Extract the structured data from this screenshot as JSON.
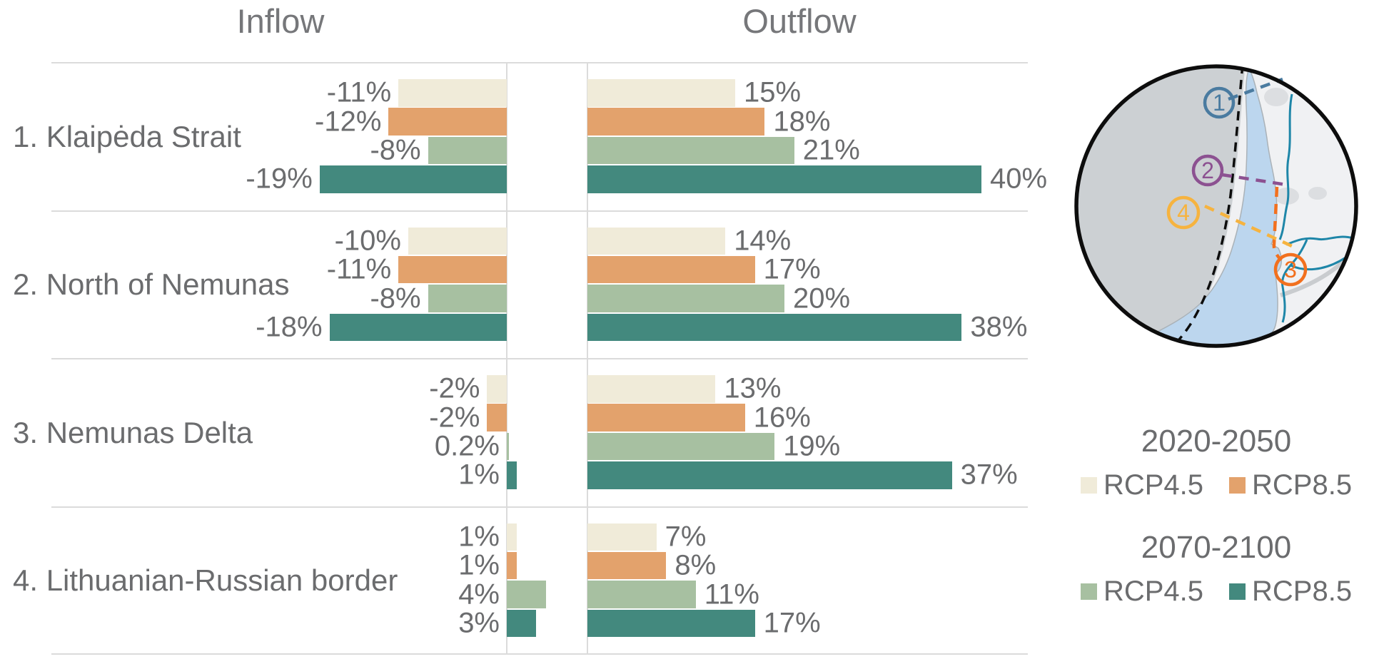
{
  "chart_data": {
    "type": "bar",
    "orientation": "horizontal",
    "panel_titles": [
      "Inflow",
      "Outflow"
    ],
    "categories": [
      "1. Klaipėda Strait",
      "2. North of Nemunas",
      "3. Nemunas Delta",
      "4. Lithuanian-Russian border"
    ],
    "unit": "%",
    "text_color": "#6b6c6e",
    "grid_color": "#dbdbdb",
    "legend_position": "right",
    "grid": "row separators and zero axes only",
    "series": [
      {
        "period": "2020-2050",
        "scenario": "RCP4.5",
        "color": "#F0EBD9",
        "inflow": [
          -11,
          -10,
          -2,
          1
        ],
        "inflow_labels": [
          "-11%",
          "-10%",
          "-2%",
          "1%"
        ],
        "outflow": [
          15,
          14,
          13,
          7
        ],
        "outflow_labels": [
          "15%",
          "14%",
          "13%",
          "7%"
        ]
      },
      {
        "period": "2020-2050",
        "scenario": "RCP8.5",
        "color": "#E3A26C",
        "inflow": [
          -12,
          -11,
          -2,
          1
        ],
        "inflow_labels": [
          "-12%",
          "-11%",
          "-2%",
          "1%"
        ],
        "outflow": [
          18,
          17,
          16,
          8
        ],
        "outflow_labels": [
          "18%",
          "17%",
          "16%",
          "8%"
        ]
      },
      {
        "period": "2070-2100",
        "scenario": "RCP4.5",
        "color": "#A7C0A1",
        "inflow": [
          -8,
          -8,
          0.2,
          4
        ],
        "inflow_labels": [
          "-8%",
          "-8%",
          "0.2%",
          "4%"
        ],
        "outflow": [
          21,
          20,
          19,
          11
        ],
        "outflow_labels": [
          "21%",
          "20%",
          "19%",
          "11%"
        ]
      },
      {
        "period": "2070-2100",
        "scenario": "RCP8.5",
        "color": "#43897E",
        "inflow": [
          -19,
          -18,
          1,
          3
        ],
        "inflow_labels": [
          "-19%",
          "-18%",
          "1%",
          "3%"
        ],
        "outflow": [
          40,
          38,
          37,
          17
        ],
        "outflow_labels": [
          "40%",
          "38%",
          "37%",
          "17%"
        ]
      }
    ]
  },
  "legend": {
    "groups": [
      {
        "title": "2020-2050",
        "items": [
          {
            "label": "RCP4.5",
            "color": "#F0EBD9"
          },
          {
            "label": "RCP8.5",
            "color": "#E3A26C"
          }
        ]
      },
      {
        "title": "2070-2100",
        "items": [
          {
            "label": "RCP4.5",
            "color": "#A7C0A1"
          },
          {
            "label": "RCP8.5",
            "color": "#43897E"
          }
        ]
      }
    ]
  },
  "map": {
    "description": "Curonian Lagoon inset map with four numbered transects",
    "markers": [
      {
        "n": "1",
        "color": "#4A7BA0"
      },
      {
        "n": "2",
        "color": "#8C5191"
      },
      {
        "n": "3",
        "color": "#F2701E"
      },
      {
        "n": "4",
        "color": "#F6B33F"
      }
    ],
    "colors": {
      "sea": "#CCD0D3",
      "land": "#F0F1F3",
      "lagoon": "#BCD6EE",
      "lagoon_edge": "#AAB2B8",
      "river": "#1E86A8",
      "road": "#C9CCCF",
      "city": "#DCDEE1",
      "outline": "#0D0D0D"
    }
  }
}
